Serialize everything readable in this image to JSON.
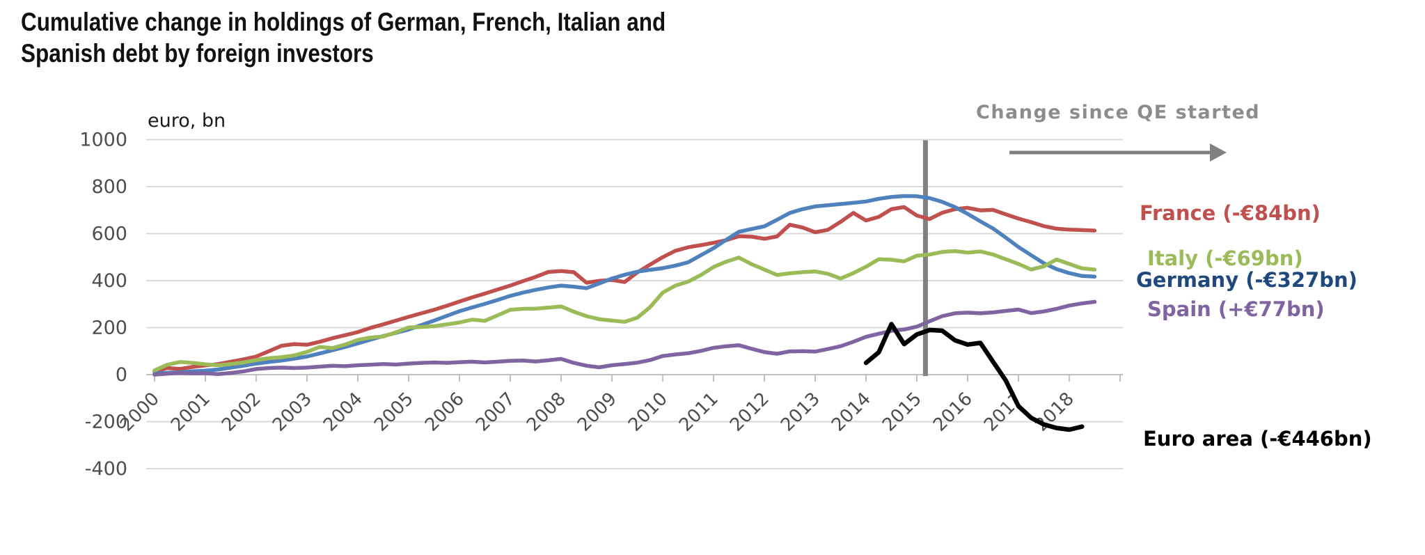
{
  "title": {
    "line1": "Cumulative change in holdings of German, French, Italian and",
    "line2": "Spanish debt by foreign investors"
  },
  "annotation": {
    "qe_text": "Change since QE started"
  },
  "colors": {
    "grid": "#d9d9d9",
    "axis_line": "#bfbfbf",
    "tick_text": "#4d4d4d",
    "qe_line": "#808080",
    "arrow": "#808080",
    "note_text": "#8c8c8c"
  },
  "chart_data": {
    "type": "line",
    "title": "Cumulative change in holdings of German, French, Italian and Spanish debt by foreign investors",
    "xlabel": "",
    "ylabel": "euro, bn",
    "unit_label": "euro, bn",
    "grid": true,
    "legend_position": "right",
    "x_axis": {
      "ticks": [
        2000,
        2001,
        2002,
        2003,
        2004,
        2005,
        2006,
        2007,
        2008,
        2009,
        2010,
        2011,
        2012,
        2013,
        2014,
        2015,
        2016,
        2017,
        2018
      ],
      "range": [
        2000,
        2019.05
      ]
    },
    "y_axis": {
      "ticks": [
        1000,
        800,
        600,
        400,
        200,
        0,
        -200,
        -400
      ],
      "range": [
        -400,
        1000
      ]
    },
    "qe_event": {
      "x": 2015.17,
      "label": "Change since QE started"
    },
    "series": [
      {
        "name": "France",
        "label": "France (-€84bn)",
        "color": "#C0504D",
        "label_color": "#C0504D",
        "start": 2000,
        "step": 0.25,
        "values": [
          15,
          28,
          24,
          33,
          39,
          45,
          55,
          65,
          77,
          100,
          123,
          130,
          127,
          140,
          155,
          168,
          181,
          199,
          214,
          230,
          246,
          261,
          276,
          293,
          311,
          329,
          345,
          362,
          379,
          398,
          416,
          437,
          441,
          436,
          391,
          399,
          403,
          394,
          435,
          468,
          500,
          527,
          542,
          551,
          561,
          572,
          589,
          587,
          578,
          588,
          638,
          626,
          606,
          616,
          650,
          688,
          656,
          671,
          704,
          713,
          677,
          662,
          689,
          704,
          710,
          699,
          701,
          682,
          664,
          649,
          632,
          621,
          617,
          615,
          613
        ]
      },
      {
        "name": "Germany",
        "label": "Germany (-€327bn)",
        "color": "#4F81BD",
        "label_color": "#1F497D",
        "start": 2000,
        "step": 0.25,
        "values": [
          5,
          8,
          10,
          14,
          17,
          22,
          30,
          38,
          47,
          54,
          60,
          68,
          77,
          90,
          104,
          118,
          133,
          149,
          164,
          178,
          192,
          211,
          230,
          250,
          270,
          286,
          301,
          318,
          335,
          349,
          361,
          371,
          379,
          374,
          368,
          388,
          409,
          425,
          438,
          446,
          453,
          464,
          478,
          508,
          538,
          574,
          608,
          620,
          631,
          659,
          688,
          704,
          716,
          721,
          726,
          731,
          737,
          748,
          756,
          760,
          759,
          751,
          735,
          713,
          684,
          652,
          622,
          583,
          543,
          508,
          474,
          449,
          432,
          420,
          417
        ]
      },
      {
        "name": "Italy",
        "label": "Italy (-€69bn)",
        "color": "#9BBB59",
        "label_color": "#9BBB59",
        "start": 2000,
        "step": 0.25,
        "values": [
          18,
          42,
          54,
          50,
          44,
          40,
          45,
          52,
          62,
          70,
          74,
          82,
          97,
          118,
          113,
          128,
          148,
          158,
          162,
          180,
          201,
          203,
          206,
          214,
          222,
          234,
          229,
          252,
          276,
          280,
          281,
          285,
          290,
          268,
          249,
          236,
          230,
          225,
          242,
          287,
          349,
          379,
          396,
          424,
          458,
          481,
          498,
          470,
          447,
          424,
          431,
          436,
          439,
          429,
          409,
          432,
          459,
          491,
          489,
          482,
          506,
          511,
          522,
          526,
          519,
          524,
          511,
          491,
          471,
          447,
          461,
          490,
          471,
          452,
          447
        ]
      },
      {
        "name": "Spain",
        "label": "Spain (+€77bn)",
        "color": "#8064A2",
        "label_color": "#8064A2",
        "start": 2000,
        "step": 0.25,
        "values": [
          0,
          4,
          7,
          5,
          6,
          2,
          7,
          14,
          24,
          28,
          30,
          28,
          30,
          34,
          38,
          36,
          40,
          42,
          45,
          43,
          47,
          50,
          52,
          50,
          53,
          55,
          52,
          55,
          59,
          60,
          56,
          61,
          67,
          50,
          38,
          31,
          40,
          45,
          51,
          62,
          79,
          86,
          91,
          101,
          114,
          121,
          125,
          110,
          96,
          89,
          99,
          100,
          98,
          109,
          121,
          140,
          161,
          174,
          186,
          192,
          204,
          227,
          249,
          261,
          264,
          261,
          265,
          271,
          277,
          262,
          269,
          280,
          294,
          303,
          310
        ]
      },
      {
        "name": "Euro area",
        "label": "Euro area (-€446bn)",
        "color": "#000000",
        "label_color": "#000000",
        "start": 2014,
        "step": 0.25,
        "values": [
          50,
          95,
          215,
          130,
          171,
          190,
          187,
          146,
          128,
          135,
          55,
          -25,
          -134,
          -184,
          -212,
          -227,
          -234,
          -221
        ]
      }
    ]
  }
}
